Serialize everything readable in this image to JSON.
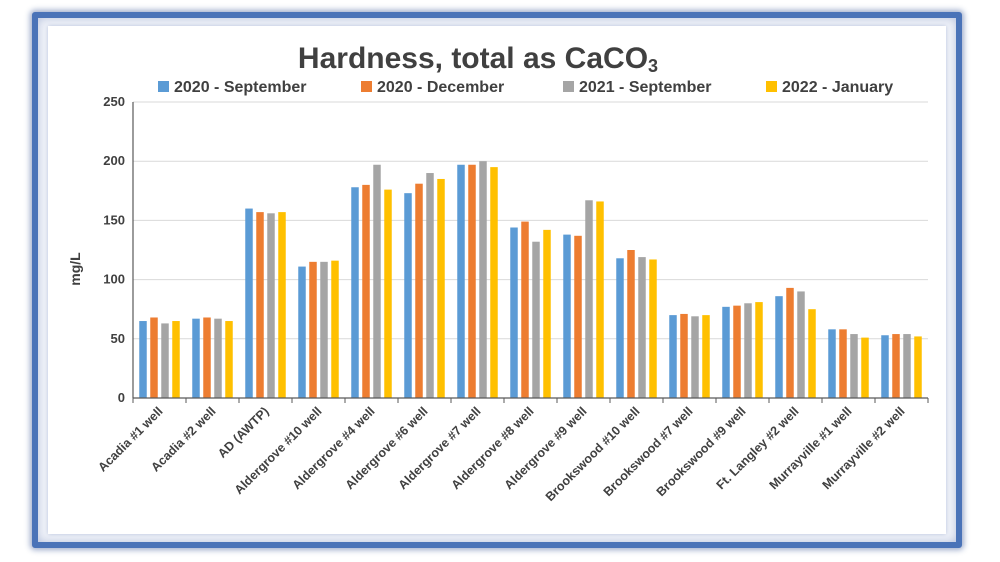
{
  "chart_data": {
    "type": "bar",
    "title": "Hardness, total as CaCO",
    "title_subscript": "3",
    "ylabel": "mg/L",
    "xlabel": "",
    "ylim": [
      0,
      250
    ],
    "yticks": [
      0,
      50,
      100,
      150,
      200,
      250
    ],
    "grid": true,
    "legend_position": "top",
    "categories": [
      "Acadia #1 well",
      "Acadia #2 well",
      "AD (AWTP)",
      "Aldergrove #10 well",
      "Aldergrove #4 well",
      "Aldergrove #6 well",
      "Aldergrove #7 well",
      "Aldergrove #8 well",
      "Aldergrove #9 well",
      "Brookswood #10 well",
      "Brookswood #7 well",
      "Brookswood #9 well",
      "Ft. Langley #2 well",
      "Murrayville #1 well",
      "Murrayville #2 well"
    ],
    "series": [
      {
        "name": "2020 - September",
        "color": "#5b9bd5",
        "values": [
          65,
          67,
          160,
          111,
          178,
          173,
          197,
          144,
          138,
          118,
          70,
          77,
          86,
          58,
          53
        ]
      },
      {
        "name": "2020 - December",
        "color": "#ed7d31",
        "values": [
          68,
          68,
          157,
          115,
          180,
          181,
          197,
          149,
          137,
          125,
          71,
          78,
          93,
          58,
          54
        ]
      },
      {
        "name": "2021 - September",
        "color": "#a5a5a5",
        "values": [
          63,
          67,
          156,
          115,
          197,
          190,
          200,
          132,
          167,
          119,
          69,
          80,
          90,
          54,
          54
        ]
      },
      {
        "name": "2022 - January",
        "color": "#ffc000",
        "values": [
          65,
          65,
          157,
          116,
          176,
          185,
          195,
          142,
          166,
          117,
          70,
          81,
          75,
          51,
          52
        ]
      }
    ]
  }
}
